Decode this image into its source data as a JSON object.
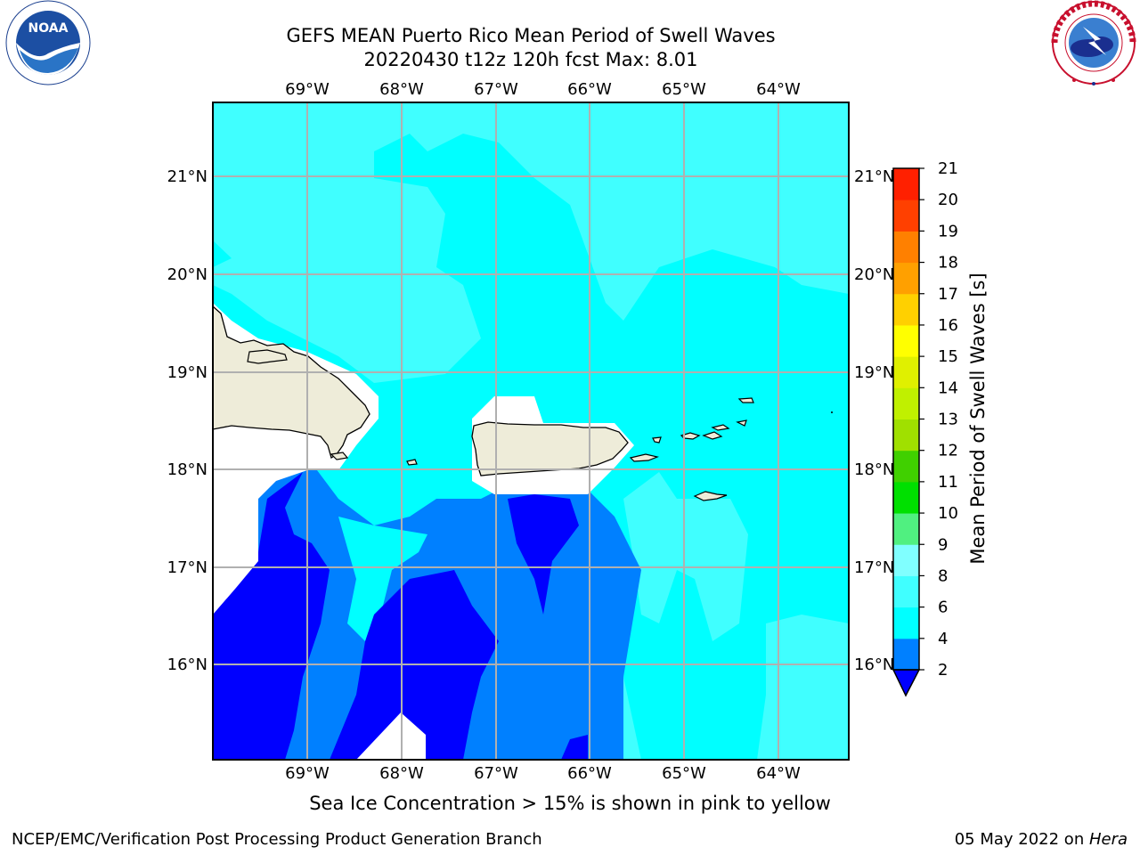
{
  "header": {
    "title_line1": "GEFS MEAN Puerto Rico Mean Period of Swell Waves",
    "title_line2": "20220430 t12z 120h fcst   Max: 8.01"
  },
  "logos": {
    "left": "NOAA",
    "left_ring_text": "NATIONAL OCEANIC AND ATMOSPHERIC ADMINISTRATION · U.S. DEPARTMENT OF COMMERCE",
    "right_ring_text": "NATIONAL WEATHER SERVICE"
  },
  "map": {
    "lon_labels": [
      "69°W",
      "68°W",
      "67°W",
      "66°W",
      "65°W",
      "64°W"
    ],
    "lat_labels": [
      "21°N",
      "20°N",
      "19°N",
      "18°N",
      "17°N",
      "16°N"
    ],
    "colors": {
      "land": "#eeecd9",
      "cyan": "#00ffff",
      "light_cyan": "#40ffff",
      "mid_blue": "#0080ff",
      "deep_blue": "#0000ff",
      "grid": "#b0b0b0"
    }
  },
  "colorbar": {
    "label": "Mean Period of Swell Waves [s]",
    "ticks": [
      "2",
      "4",
      "6",
      "8",
      "9",
      "10",
      "11",
      "12",
      "13",
      "14",
      "15",
      "16",
      "17",
      "18",
      "19",
      "20",
      "21"
    ],
    "colors": [
      "#0000ff",
      "#0080ff",
      "#00ffff",
      "#40ffff",
      "#80ffff",
      "#50f080",
      "#00e000",
      "#40d000",
      "#a0e000",
      "#c0f000",
      "#e0f000",
      "#ffff00",
      "#ffd000",
      "#ffa000",
      "#ff8000",
      "#ff4000",
      "#ff2000",
      "#ff0000"
    ]
  },
  "footer": {
    "note": "Sea Ice Concentration > 15% is shown in pink to yellow",
    "left": "NCEP/EMC/Verification Post Processing Product Generation Branch",
    "right_date": "05 May 2022 on ",
    "right_host": "Hera"
  }
}
